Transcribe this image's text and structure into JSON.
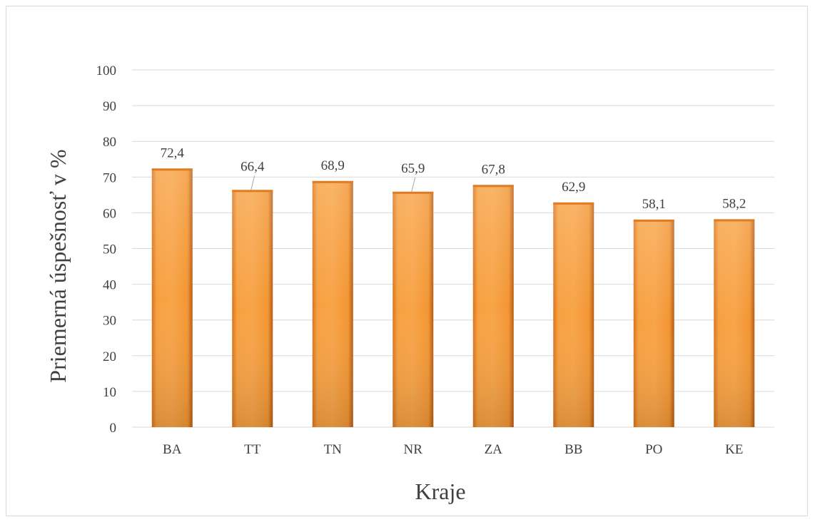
{
  "chart_data": {
    "type": "bar",
    "categories": [
      "BA",
      "TT",
      "TN",
      "NR",
      "ZA",
      "BB",
      "PO",
      "KE"
    ],
    "values": [
      72.4,
      66.4,
      68.9,
      65.9,
      67.8,
      62.9,
      58.1,
      58.2
    ],
    "value_labels": [
      "72,4",
      "66,4",
      "68,9",
      "65,9",
      "67,8",
      "62,9",
      "58,1",
      "58,2"
    ],
    "xlabel": "Kraje",
    "ylabel": "Priemerná úspešnosť v %",
    "ylim": [
      0,
      100
    ],
    "yticks": [
      0,
      10,
      20,
      30,
      40,
      50,
      60,
      70,
      80,
      90,
      100
    ],
    "grid": true,
    "legend": "none",
    "colors": {
      "bar": "#f5962a",
      "bar_dark": "#c9661a",
      "grid": "#d9d9d9",
      "text": "#404040"
    }
  }
}
